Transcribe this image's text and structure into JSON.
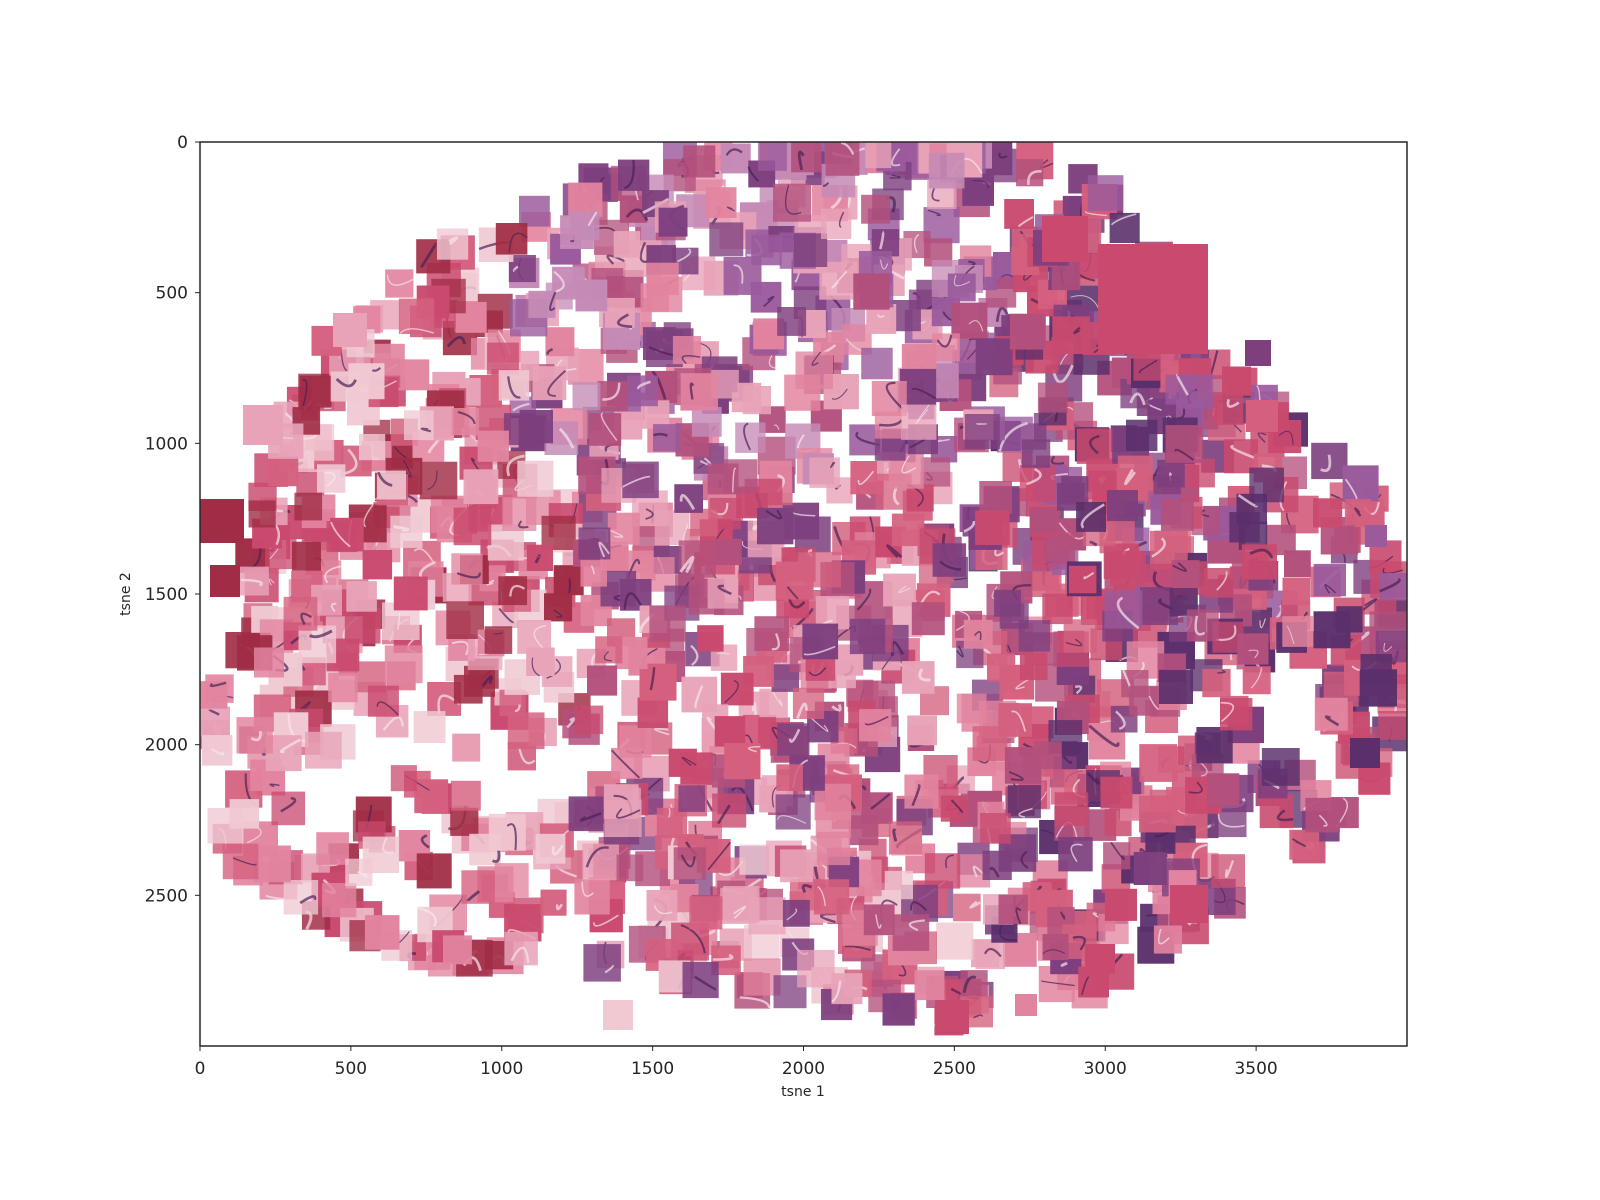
{
  "chart_data": {
    "type": "scatter",
    "marker": "image-thumbnail",
    "description_of_marks": "histology image tiles (H&E) placed at t-SNE coordinates",
    "title": "",
    "xlabel": "tsne 1",
    "ylabel": "tsne 2",
    "xlim": [
      0,
      4000
    ],
    "ylim": [
      3000,
      0
    ],
    "y_inverted": true,
    "grid": false,
    "legend": "none",
    "x_ticks": [
      "0",
      "500",
      "1000",
      "1500",
      "2000",
      "2500",
      "3000",
      "3500"
    ],
    "y_ticks": [
      "0",
      "500",
      "1000",
      "1500",
      "2000",
      "2500"
    ],
    "colors": {
      "axis": "#262626",
      "tile_palette": [
        "#e2849f",
        "#d4607e",
        "#c94a6e",
        "#e8a3b8",
        "#b3507c",
        "#7d3f7e",
        "#9a5a9c",
        "#c58ab6",
        "#5a2f6b",
        "#f0c9d3",
        "#a02c45"
      ]
    }
  }
}
